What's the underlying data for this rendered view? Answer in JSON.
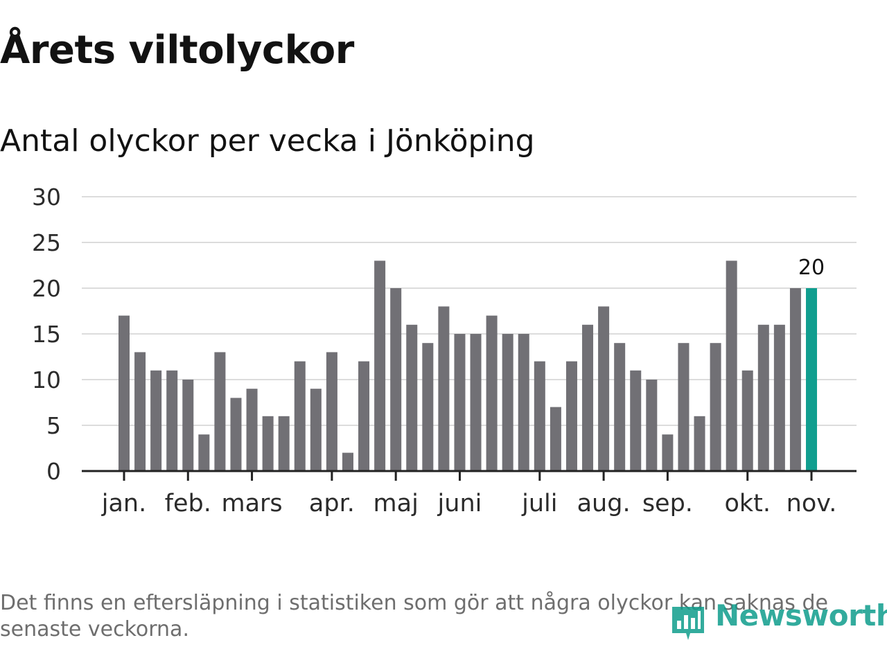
{
  "header": {
    "title": "Årets viltolyckor",
    "subtitle": "Antal olyckor per vecka i Jönköping"
  },
  "chart_data": {
    "type": "bar",
    "title": "Årets viltolyckor",
    "subtitle": "Antal olyckor per vecka i Jönköping",
    "xlabel": "",
    "ylabel": "",
    "ylim": [
      0,
      30
    ],
    "y_ticks": [
      0,
      5,
      10,
      15,
      20,
      25,
      30
    ],
    "grid": true,
    "month_labels": [
      {
        "label": "jan.",
        "week_index": 0
      },
      {
        "label": "feb.",
        "week_index": 4
      },
      {
        "label": "mars",
        "week_index": 8
      },
      {
        "label": "apr.",
        "week_index": 13
      },
      {
        "label": "maj",
        "week_index": 17
      },
      {
        "label": "juni",
        "week_index": 21
      },
      {
        "label": "juli",
        "week_index": 26
      },
      {
        "label": "aug.",
        "week_index": 30
      },
      {
        "label": "sep.",
        "week_index": 34
      },
      {
        "label": "okt.",
        "week_index": 39
      },
      {
        "label": "nov.",
        "week_index": 43
      }
    ],
    "series": [
      {
        "name": "Olyckor per vecka",
        "values": [
          17,
          13,
          11,
          11,
          10,
          4,
          13,
          8,
          9,
          6,
          6,
          12,
          9,
          13,
          2,
          12,
          23,
          20,
          16,
          14,
          18,
          15,
          15,
          17,
          15,
          15,
          12,
          7,
          12,
          16,
          18,
          14,
          11,
          10,
          4,
          14,
          6,
          14,
          23,
          11,
          16,
          16,
          20,
          20
        ]
      }
    ],
    "highlight": {
      "week_index": 43,
      "label": "20"
    },
    "colors": {
      "bar": "#717075",
      "highlight": "#109e8f",
      "grid": "#dcdcdc",
      "axis": "#222222"
    }
  },
  "footnote": "Det finns en eftersläpning i statistiken som gör att några olyckor kan saknas de senaste veckorna.",
  "logo": {
    "text": "Newsworthy",
    "icon": "bar-chart-icon",
    "color": "#0f9d8c"
  }
}
